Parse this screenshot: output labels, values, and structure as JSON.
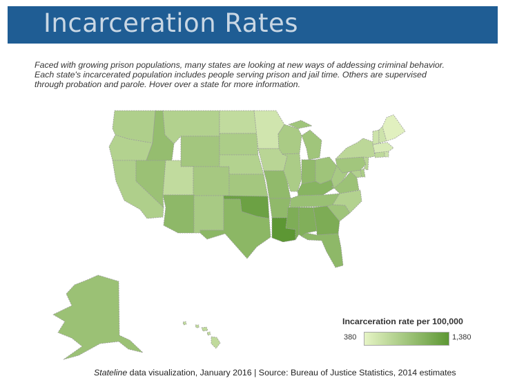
{
  "header": {
    "title": "Incarceration Rates",
    "color": "#1f5d94"
  },
  "intro": {
    "line1": "Faced with growing prison populations, many states are looking at new ways of addessing criminal behavior.",
    "line2": "Each state's incarcerated population includes people serving prison and jail time. Others are supervised",
    "line3": "through probation and parole. Hover over a state for more information."
  },
  "legend": {
    "title": "Incarceration rate per 100,000",
    "min_label": "380",
    "max_label": "1,380",
    "min_value": 380,
    "max_value": 1380,
    "min_color": "#e6f4c5",
    "max_color": "#5d9734"
  },
  "footer": {
    "publication": "Stateline",
    "rest": " data visualization, January 2016 | Source: Bureau of Justice Statistics, 2014 estimates"
  },
  "map": {
    "interaction": "hover",
    "states": {
      "WA": 780,
      "OR": 750,
      "CA": 780,
      "NV": 930,
      "ID": 970,
      "MT": 760,
      "WY": 870,
      "UT": 650,
      "CO": 850,
      "AZ": 1020,
      "NM": 830,
      "ND": 650,
      "SD": 800,
      "NE": 750,
      "KS": 860,
      "OK": 1270,
      "TX": 1040,
      "MN": 540,
      "IA": 710,
      "MO": 1000,
      "AR": 1010,
      "LA": 1380,
      "WI": 820,
      "IL": 810,
      "MI": 890,
      "IN": 1000,
      "OH": 900,
      "KY": 1070,
      "TN": 940,
      "MS": 1140,
      "AL": 1120,
      "GA": 1150,
      "FL": 1020,
      "SC": 900,
      "NC": 750,
      "VA": 920,
      "WV": 830,
      "MD": 760,
      "DE": 800,
      "PA": 880,
      "NY": 690,
      "NJ": 710,
      "CT": 670,
      "RI": 560,
      "MA": 480,
      "VT": 560,
      "NH": 560,
      "ME": 420,
      "AK": 930,
      "HI": 660
    }
  }
}
